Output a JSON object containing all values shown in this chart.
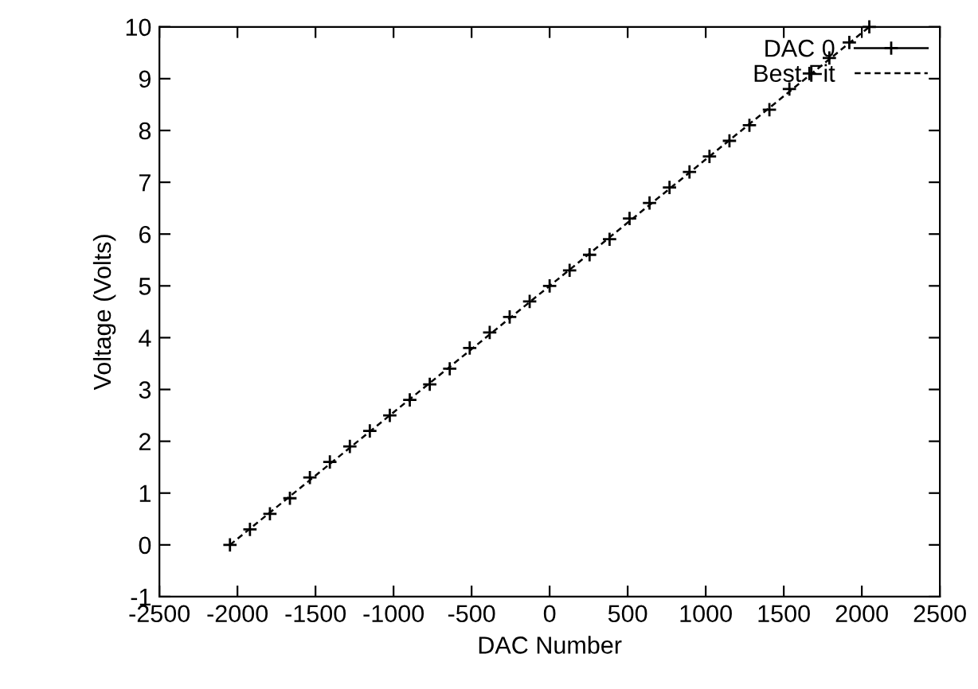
{
  "chart_data": {
    "type": "scatter",
    "xlabel": "DAC Number",
    "ylabel": "Voltage (Volts)",
    "xlim": [
      -2500,
      2500
    ],
    "xticks": [
      -2500,
      -2000,
      -1500,
      -1000,
      -500,
      0,
      500,
      1000,
      1500,
      2000,
      2500
    ],
    "ylim": [
      -1,
      10
    ],
    "yticks": [
      -1,
      0,
      1,
      2,
      3,
      4,
      5,
      6,
      7,
      8,
      9,
      10
    ],
    "grid": false,
    "legend": "top right",
    "series": [
      {
        "name": "DAC 0",
        "color": "#000000",
        "marker": "cross",
        "x": [
          -2048,
          -1920,
          -1792,
          -1664,
          -1536,
          -1408,
          -1280,
          -1152,
          -1024,
          -896,
          -768,
          -640,
          -512,
          -384,
          -256,
          -128,
          0,
          128,
          256,
          384,
          512,
          640,
          768,
          896,
          1024,
          1152,
          1280,
          1408,
          1536,
          1664,
          1792,
          1920,
          2048
        ],
        "values": [
          0,
          0.3,
          0.6,
          0.9,
          1.3,
          1.6,
          1.9,
          2.2,
          2.5,
          2.8,
          3.1,
          3.4,
          3.8,
          4.1,
          4.4,
          4.7,
          5,
          5.3,
          5.6,
          5.9,
          6.3,
          6.6,
          6.9,
          7.2,
          7.5,
          7.8,
          8.1,
          8.4,
          8.8,
          9.1,
          9.4,
          9.7,
          10
        ]
      },
      {
        "name": "Best Fit",
        "type": "line",
        "color": "#000000",
        "line_style": "dashed",
        "marker": "none",
        "x": [
          -2048,
          2048
        ],
        "values": [
          0,
          10
        ]
      }
    ]
  }
}
